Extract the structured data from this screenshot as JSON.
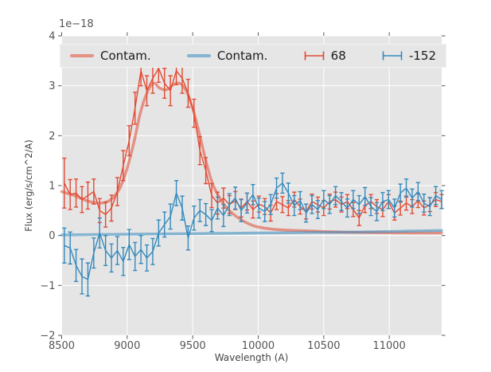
{
  "figure": {
    "offset_text": "1e−18"
  },
  "chart_data": {
    "type": "line",
    "title": "",
    "xlabel": "Wavelength (A)",
    "ylabel": "Flux (erg/s/cm^2/A)",
    "offset_text": "1e−18",
    "xlim": [
      8500,
      11400
    ],
    "ylim": [
      -2,
      4
    ],
    "x_ticks": [
      8500,
      9000,
      9500,
      10000,
      10500,
      11000
    ],
    "y_ticks": [
      -2,
      -1,
      0,
      1,
      2,
      3,
      4
    ],
    "grid": true,
    "legend_position": "upper center, horizontal, 4 columns",
    "style": {
      "figure_bg": "#FFFFFF",
      "plot_bg": "#E5E5E5",
      "grid_color": "#FFFFFF",
      "tick_color": "#555555",
      "label_color": "#444444",
      "legend_bg": "#E6E6E6",
      "legend_border": "#F2F2F2",
      "legend_text": "#1A1A1A",
      "red": "#E24A33",
      "blue": "#348ABD",
      "contam_alpha": 0.55
    },
    "series": [
      {
        "name": "Contam.",
        "type": "line",
        "color": "#E24A33",
        "alpha": 0.55,
        "width": 3.5,
        "x": [
          8500,
          8550,
          8600,
          8650,
          8700,
          8750,
          8800,
          8850,
          8900,
          8950,
          9000,
          9050,
          9100,
          9150,
          9200,
          9250,
          9300,
          9350,
          9400,
          9450,
          9500,
          9550,
          9600,
          9650,
          9700,
          9750,
          9800,
          9850,
          9900,
          9950,
          10000,
          10100,
          10200,
          10400,
          10600,
          10800,
          11000,
          11200,
          11400
        ],
        "y": [
          0.88,
          0.84,
          0.8,
          0.74,
          0.69,
          0.66,
          0.65,
          0.68,
          0.78,
          0.98,
          1.35,
          1.85,
          2.45,
          2.85,
          3.05,
          2.95,
          2.92,
          3.02,
          3.05,
          2.9,
          2.55,
          2.05,
          1.5,
          1.05,
          0.78,
          0.58,
          0.45,
          0.35,
          0.27,
          0.21,
          0.17,
          0.13,
          0.11,
          0.09,
          0.07,
          0.06,
          0.055,
          0.05,
          0.05
        ]
      },
      {
        "name": "Contam.",
        "type": "line",
        "color": "#348ABD",
        "alpha": 0.55,
        "width": 3.5,
        "x": [
          8500,
          8800,
          9200,
          9600,
          10000,
          10400,
          10800,
          11100,
          11400
        ],
        "y": [
          0.01,
          0.02,
          0.03,
          0.04,
          0.05,
          0.06,
          0.07,
          0.085,
          0.1
        ]
      },
      {
        "name": "68",
        "type": "errorbar",
        "color": "#E24A33",
        "x": [
          8520,
          8565,
          8610,
          8655,
          8700,
          8745,
          8790,
          8835,
          8880,
          8925,
          8970,
          9015,
          9060,
          9105,
          9150,
          9195,
          9240,
          9285,
          9330,
          9375,
          9420,
          9465,
          9510,
          9555,
          9600,
          9645,
          9690,
          9735,
          9780,
          9825,
          9870,
          9915,
          9960,
          10005,
          10050,
          10095,
          10140,
          10185,
          10230,
          10275,
          10320,
          10365,
          10410,
          10455,
          10500,
          10545,
          10590,
          10635,
          10680,
          10725,
          10770,
          10815,
          10860,
          10905,
          10950,
          10995,
          11040,
          11085,
          11130,
          11175,
          11220,
          11265,
          11310,
          11355,
          11400
        ],
        "y": [
          1.05,
          0.82,
          0.85,
          0.72,
          0.8,
          0.88,
          0.5,
          0.42,
          0.55,
          0.88,
          1.4,
          1.9,
          2.55,
          3.3,
          2.9,
          3.15,
          3.35,
          3.05,
          2.9,
          3.3,
          3.15,
          2.85,
          2.45,
          1.7,
          1.3,
          0.8,
          0.65,
          0.75,
          0.62,
          0.7,
          0.55,
          0.68,
          0.52,
          0.63,
          0.58,
          0.45,
          0.68,
          0.62,
          0.55,
          0.72,
          0.58,
          0.48,
          0.68,
          0.62,
          0.55,
          0.68,
          0.72,
          0.62,
          0.68,
          0.52,
          0.35,
          0.6,
          0.68,
          0.58,
          0.52,
          0.68,
          0.45,
          0.55,
          0.65,
          0.58,
          0.7,
          0.55,
          0.62,
          0.72,
          0.68
        ],
        "yerr": [
          0.5,
          0.3,
          0.28,
          0.26,
          0.27,
          0.25,
          0.24,
          0.25,
          0.26,
          0.28,
          0.3,
          0.3,
          0.32,
          0.3,
          0.3,
          0.3,
          0.28,
          0.3,
          0.3,
          0.28,
          0.3,
          0.28,
          0.28,
          0.28,
          0.26,
          0.24,
          0.22,
          0.2,
          0.18,
          0.18,
          0.18,
          0.17,
          0.17,
          0.16,
          0.16,
          0.16,
          0.16,
          0.16,
          0.15,
          0.15,
          0.15,
          0.15,
          0.15,
          0.15,
          0.15,
          0.15,
          0.15,
          0.15,
          0.14,
          0.14,
          0.15,
          0.14,
          0.14,
          0.14,
          0.14,
          0.14,
          0.14,
          0.14,
          0.14,
          0.14,
          0.14,
          0.14,
          0.14,
          0.14,
          0.14
        ]
      },
      {
        "name": "-152",
        "type": "errorbar",
        "color": "#348ABD",
        "x": [
          8520,
          8565,
          8610,
          8655,
          8700,
          8745,
          8790,
          8835,
          8880,
          8925,
          8970,
          9015,
          9060,
          9105,
          9150,
          9195,
          9240,
          9285,
          9330,
          9375,
          9420,
          9465,
          9510,
          9555,
          9600,
          9645,
          9690,
          9735,
          9780,
          9825,
          9870,
          9915,
          9960,
          10005,
          10050,
          10095,
          10140,
          10185,
          10230,
          10275,
          10320,
          10365,
          10410,
          10455,
          10500,
          10545,
          10590,
          10635,
          10680,
          10725,
          10770,
          10815,
          10860,
          10905,
          10950,
          10995,
          11040,
          11085,
          11130,
          11175,
          11220,
          11265,
          11310,
          11355,
          11400
        ],
        "y": [
          -0.2,
          -0.25,
          -0.6,
          -0.82,
          -0.88,
          -0.35,
          0.05,
          -0.3,
          -0.45,
          -0.3,
          -0.52,
          -0.18,
          -0.42,
          -0.28,
          -0.45,
          -0.32,
          0.05,
          0.22,
          0.38,
          0.85,
          0.55,
          -0.05,
          0.35,
          0.5,
          0.42,
          0.3,
          0.55,
          0.4,
          0.62,
          0.75,
          0.5,
          0.65,
          0.82,
          0.55,
          0.48,
          0.62,
          0.95,
          1.05,
          0.85,
          0.6,
          0.7,
          0.45,
          0.62,
          0.52,
          0.72,
          0.62,
          0.8,
          0.68,
          0.55,
          0.72,
          0.62,
          0.78,
          0.58,
          0.48,
          0.68,
          0.72,
          0.55,
          0.85,
          0.95,
          0.75,
          0.88,
          0.65,
          0.58,
          0.8,
          0.72
        ],
        "yerr": [
          0.35,
          0.32,
          0.32,
          0.35,
          0.33,
          0.3,
          0.3,
          0.3,
          0.28,
          0.28,
          0.28,
          0.3,
          0.28,
          0.28,
          0.26,
          0.26,
          0.26,
          0.25,
          0.25,
          0.25,
          0.24,
          0.24,
          0.24,
          0.22,
          0.22,
          0.22,
          0.22,
          0.22,
          0.22,
          0.22,
          0.22,
          0.2,
          0.2,
          0.2,
          0.2,
          0.2,
          0.2,
          0.2,
          0.2,
          0.2,
          0.18,
          0.18,
          0.18,
          0.18,
          0.18,
          0.18,
          0.18,
          0.18,
          0.18,
          0.18,
          0.18,
          0.18,
          0.18,
          0.18,
          0.18,
          0.18,
          0.18,
          0.18,
          0.18,
          0.18,
          0.18,
          0.18,
          0.18,
          0.18,
          0.18
        ]
      }
    ]
  }
}
